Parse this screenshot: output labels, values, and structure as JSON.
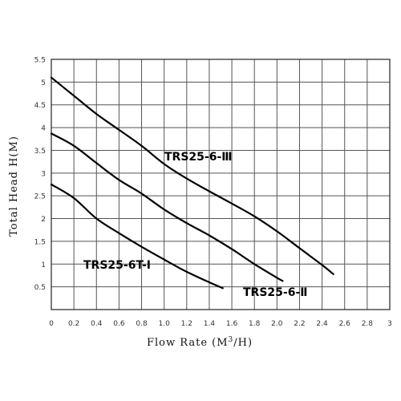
{
  "chart_data": {
    "type": "line",
    "xlabel_parts": [
      "Flow Rate (M",
      "3",
      "/H)"
    ],
    "ylabel": "Total Head H(M)",
    "xlim": [
      0,
      3
    ],
    "ylim": [
      0,
      5.5
    ],
    "x_ticks": [
      "0",
      "0.2",
      "0.4",
      "0.6",
      "0.8",
      "1.0",
      "1.2",
      "1.4",
      "1.6",
      "1.8",
      "2.0",
      "2.2",
      "2.4",
      "2.6",
      "2.8",
      "3"
    ],
    "y_ticks": [
      "5.5",
      "5",
      "4.5",
      "4",
      "3.5",
      "3",
      "2.5",
      "2",
      "1.5",
      "1",
      "0.5"
    ],
    "grid": true,
    "series": [
      {
        "name": "TRS25-6-Ⅲ",
        "x": [
          0,
          0.2,
          0.4,
          0.6,
          0.8,
          1.0,
          1.2,
          1.4,
          1.6,
          1.8,
          2.0,
          2.2,
          2.4,
          2.5
        ],
        "y": [
          5.1,
          4.7,
          4.3,
          3.95,
          3.6,
          3.2,
          2.88,
          2.6,
          2.33,
          2.05,
          1.72,
          1.35,
          0.98,
          0.78
        ]
      },
      {
        "name": "TRS25-6-Ⅱ",
        "x": [
          0,
          0.2,
          0.4,
          0.6,
          0.8,
          1.0,
          1.2,
          1.4,
          1.6,
          1.8,
          2.0,
          2.05
        ],
        "y": [
          3.87,
          3.6,
          3.22,
          2.85,
          2.55,
          2.2,
          1.9,
          1.63,
          1.33,
          1.0,
          0.7,
          0.63
        ]
      },
      {
        "name": "TRS25-6T-Ⅰ",
        "x": [
          0,
          0.2,
          0.4,
          0.6,
          0.8,
          1.0,
          1.2,
          1.4,
          1.52
        ],
        "y": [
          2.75,
          2.45,
          2.0,
          1.68,
          1.38,
          1.1,
          0.83,
          0.6,
          0.47
        ]
      }
    ]
  }
}
